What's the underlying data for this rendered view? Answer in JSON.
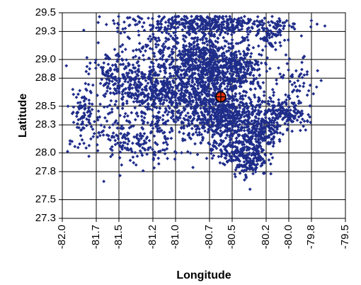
{
  "chart_data": {
    "type": "scatter",
    "xlabel": "Longitude",
    "ylabel": "Latitude",
    "xlim": [
      -82.0,
      -79.5
    ],
    "ylim": [
      27.3,
      29.5
    ],
    "x_ticks": [
      -82.0,
      -81.7,
      -81.5,
      -81.2,
      -81.0,
      -80.7,
      -80.5,
      -80.2,
      -80.0,
      -79.8,
      -79.5
    ],
    "x_tick_labels": [
      "-82.0",
      "-81.7",
      "-81.5",
      "-81.2",
      "-81.0",
      "-80.7",
      "-80.5",
      "-80.2",
      "-80.0",
      "-79.8",
      "-79.5"
    ],
    "y_ticks": [
      27.3,
      27.5,
      27.8,
      28.0,
      28.3,
      28.5,
      28.8,
      29.0,
      29.3,
      29.5
    ],
    "y_tick_labels": [
      "27.3",
      "27.5",
      "27.8",
      "28.0",
      "28.3",
      "28.5",
      "28.8",
      "29.0",
      "29.3",
      "29.5"
    ],
    "grid": true,
    "legend": "none",
    "series": [
      {
        "marker": "diamond",
        "color": "#1f2d8a",
        "clusters": [
          {
            "center": [
              -80.72,
              28.85
            ],
            "spread": [
              0.22,
              0.25
            ],
            "count": 900
          },
          {
            "center": [
              -80.55,
              28.38
            ],
            "spread": [
              0.25,
              0.13
            ],
            "count": 650
          },
          {
            "center": [
              -81.22,
              28.68
            ],
            "spread": [
              0.22,
              0.12
            ],
            "count": 380
          },
          {
            "center": [
              -80.75,
              29.38
            ],
            "spread": [
              0.38,
              0.05
            ],
            "count": 360
          },
          {
            "center": [
              -80.35,
              27.98
            ],
            "spread": [
              0.08,
              0.12
            ],
            "count": 230
          },
          {
            "center": [
              -80.25,
              28.22
            ],
            "spread": [
              0.07,
              0.08
            ],
            "count": 110
          },
          {
            "center": [
              -80.02,
              28.42
            ],
            "spread": [
              0.08,
              0.06
            ],
            "count": 100
          },
          {
            "center": [
              -80.45,
              28.88
            ],
            "spread": [
              0.12,
              0.1
            ],
            "count": 160
          },
          {
            "center": [
              -81.0,
              29.05
            ],
            "spread": [
              0.28,
              0.18
            ],
            "count": 260
          },
          {
            "center": [
              -81.55,
              28.88
            ],
            "spread": [
              0.1,
              0.1
            ],
            "count": 90
          },
          {
            "center": [
              -81.82,
              28.45
            ],
            "spread": [
              0.05,
              0.12
            ],
            "count": 70
          },
          {
            "center": [
              -81.55,
              28.2
            ],
            "spread": [
              0.2,
              0.18
            ],
            "count": 120
          },
          {
            "center": [
              -81.35,
              28.05
            ],
            "spread": [
              0.15,
              0.1
            ],
            "count": 70
          },
          {
            "center": [
              -80.15,
              29.25
            ],
            "spread": [
              0.06,
              0.06
            ],
            "count": 60
          },
          {
            "center": [
              -79.92,
              28.7
            ],
            "spread": [
              0.08,
              0.15
            ],
            "count": 60
          },
          {
            "center": [
              -80.55,
              28.05
            ],
            "spread": [
              0.1,
              0.1
            ],
            "count": 80
          },
          {
            "center": [
              -81.1,
              28.35
            ],
            "spread": [
              0.15,
              0.15
            ],
            "count": 90
          }
        ]
      }
    ],
    "highlight_point": {
      "x": -80.6,
      "y": 28.6,
      "marker": "circle-cross",
      "color": "#e03010"
    }
  }
}
